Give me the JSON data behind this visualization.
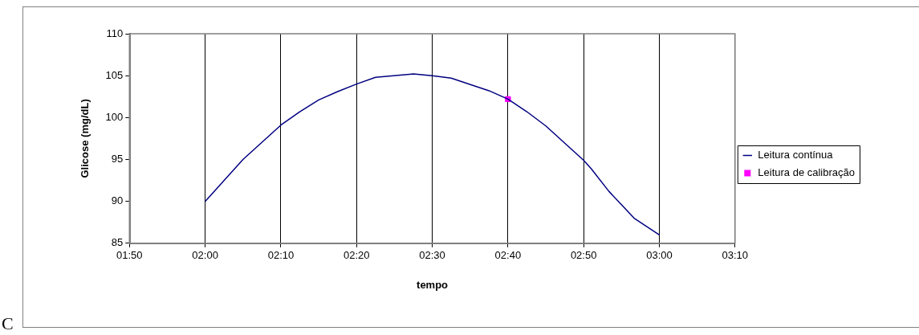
{
  "chart_data": {
    "type": "line",
    "xlabel": "tempo",
    "ylabel": "Glicose (mg/dL)",
    "annotations": [
      "C"
    ],
    "xlim": [
      1.8333,
      3.1667
    ],
    "xticks": [
      {
        "value": 1.8333,
        "label": "01:50"
      },
      {
        "value": 2,
        "label": "02:00"
      },
      {
        "value": 2.1667,
        "label": "02:10"
      },
      {
        "value": 2.3333,
        "label": "02:20"
      },
      {
        "value": 2.5,
        "label": "02:30"
      },
      {
        "value": 2.6667,
        "label": "02:40"
      },
      {
        "value": 2.8333,
        "label": "02:50"
      },
      {
        "value": 3,
        "label": "03:00"
      },
      {
        "value": 3.1667,
        "label": "03:10"
      }
    ],
    "ylim": [
      85,
      110
    ],
    "yticks": [
      85,
      90,
      95,
      100,
      105,
      110
    ],
    "grid": "x",
    "legend": "right",
    "series": [
      {
        "name": "Leitura contínua",
        "type": "line",
        "color": "#000080",
        "marker": "none",
        "line_style": "solid",
        "x": [
          2,
          2.0833,
          2.1667,
          2.2083,
          2.25,
          2.2917,
          2.3333,
          2.375,
          2.4583,
          2.5,
          2.5417,
          2.625,
          2.6667,
          2.7083,
          2.75,
          2.8333,
          2.85,
          2.8889,
          2.9444,
          3
        ],
        "values": [
          90,
          95,
          99.1,
          100.7,
          102.1,
          103.1,
          104,
          104.8,
          105.2,
          105,
          104.7,
          103.2,
          102.2,
          100.7,
          99,
          94.9,
          93.9,
          91.2,
          88,
          86
        ]
      },
      {
        "name": "Leitura de calibração",
        "type": "scatter",
        "color": "#ff00ff",
        "marker": "square",
        "x": [
          2.6667
        ],
        "values": [
          102.2
        ]
      }
    ]
  }
}
